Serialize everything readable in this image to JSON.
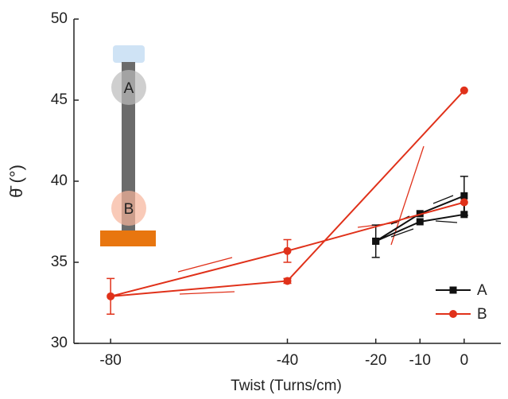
{
  "chart_data": {
    "type": "line",
    "x_label": "Twist (Turns/cm)",
    "y_label": "θ̄ (°)",
    "inset_labels": [
      "A",
      "B"
    ],
    "xlim": [
      -88.3,
      8.3
    ],
    "xticks": [
      -80,
      -40,
      -20,
      -10,
      0
    ],
    "ylim": [
      30,
      50
    ],
    "yticks": [
      30,
      35,
      40,
      45,
      50
    ],
    "legend": "lower right",
    "series": [
      {
        "name": "A",
        "color": "#111111",
        "marker": "square",
        "x": [
          -20,
          -10,
          0,
          0,
          -10,
          -20
        ],
        "values": [
          36.3,
          37.5,
          37.95,
          39.1,
          38.0,
          36.3
        ],
        "errors": [
          1.0,
          null,
          null,
          1.2,
          null,
          null
        ]
      },
      {
        "name": "B",
        "color": "#e0311a",
        "marker": "circle",
        "x": [
          0,
          -40,
          -80,
          -40,
          0
        ],
        "values": [
          38.7,
          35.7,
          32.9,
          33.85,
          45.6
        ],
        "errors": [
          null,
          0.7,
          1.1,
          0.15,
          null
        ]
      }
    ]
  }
}
